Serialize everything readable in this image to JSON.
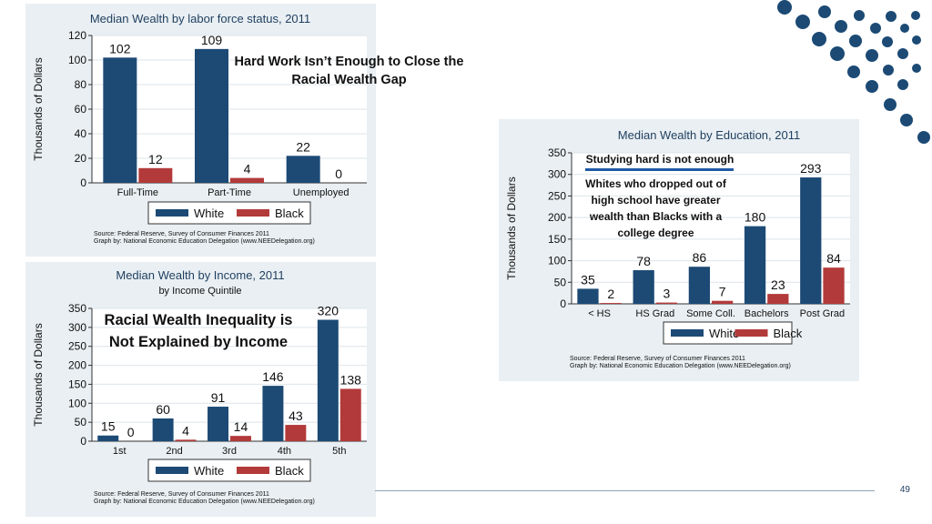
{
  "slide": {
    "page_number": "49"
  },
  "colors": {
    "white_series": "#1c4a75",
    "black_series": "#b33a3a",
    "panel_bg": "#e9eff3",
    "accent": "#1f5aa6"
  },
  "callouts": {
    "work": "Hard Work Isn’t Enough to Close the Racial Wealth Gap",
    "education_head": "Studying hard is not enough",
    "education_body": "Whites who dropped out of high school have greater wealth than Blacks with a college degree",
    "income": "Racial Wealth Inequality is Not Explained by Income"
  },
  "chart_data": [
    {
      "type": "bar",
      "title": "Median Wealth by labor force status, 2011",
      "subtitle": "",
      "ylabel": "Thousands of Dollars",
      "ylim": [
        0,
        120
      ],
      "yticks": [
        0,
        20,
        40,
        60,
        80,
        100,
        120
      ],
      "categories": [
        "Full-Time",
        "Part-Time",
        "Unemployed"
      ],
      "series": [
        {
          "name": "White",
          "values": [
            102,
            109,
            22
          ]
        },
        {
          "name": "Black",
          "values": [
            12,
            4,
            0
          ]
        }
      ],
      "legend": "bottom",
      "source": [
        "Source: Federal Reserve, Survey of Consumer Finances 2011",
        "Graph by: National Economic Education Delegation (www.NEEDelegation.org)"
      ]
    },
    {
      "type": "bar",
      "title": "Median Wealth by Income, 2011",
      "subtitle": "by Income Quintile",
      "ylabel": "Thousands of Dollars",
      "ylim": [
        0,
        350
      ],
      "yticks": [
        0,
        50,
        100,
        150,
        200,
        250,
        300,
        350
      ],
      "categories": [
        "1st",
        "2nd",
        "3rd",
        "4th",
        "5th"
      ],
      "series": [
        {
          "name": "White",
          "values": [
            15,
            60,
            91,
            146,
            320
          ]
        },
        {
          "name": "Black",
          "values": [
            0,
            4,
            14,
            43,
            138
          ]
        }
      ],
      "legend": "bottom",
      "source": [
        "Source: Federal Reserve, Survey of Consumer Finances 2011",
        "Graph by: National Economic Education Delegation (www.NEEDelegation.org)"
      ]
    },
    {
      "type": "bar",
      "title": "Median Wealth by Education, 2011",
      "subtitle": "",
      "ylabel": "Thousands of Dollars",
      "ylim": [
        0,
        350
      ],
      "yticks": [
        0,
        50,
        100,
        150,
        200,
        250,
        300,
        350
      ],
      "categories": [
        "< HS",
        "HS Grad",
        "Some Coll.",
        "Bachelors",
        "Post Grad"
      ],
      "series": [
        {
          "name": "White",
          "values": [
            35,
            78,
            86,
            180,
            293
          ]
        },
        {
          "name": "Black",
          "values": [
            2,
            3,
            7,
            23,
            84
          ]
        }
      ],
      "legend": "bottom",
      "source": [
        "Source: Federal Reserve, Survey of Consumer Finances 2011",
        "Graph by: National Economic Education Delegation (www.NEEDelegation.org)"
      ]
    }
  ]
}
